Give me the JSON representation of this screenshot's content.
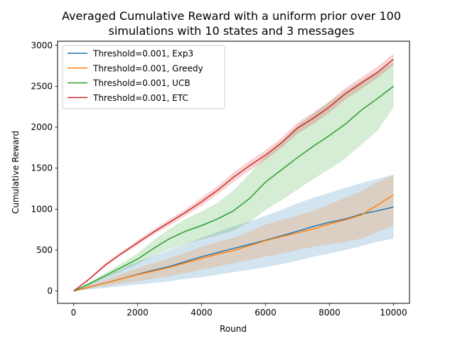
{
  "chart_data": {
    "type": "line",
    "title_lines": [
      "Averaged Cumulative Reward with a uniform prior over 100",
      "simulations with 10 states and 3 messages"
    ],
    "xlabel": "Round",
    "ylabel": "Cumulative Reward",
    "xlim": [
      -500,
      10500
    ],
    "ylim": [
      -150,
      3050
    ],
    "xticks": [
      0,
      2000,
      4000,
      6000,
      8000,
      10000
    ],
    "yticks": [
      0,
      500,
      1000,
      1500,
      2000,
      2500,
      3000
    ],
    "grid": false,
    "legend_position": "top-left",
    "x": [
      0,
      500,
      1000,
      1500,
      2000,
      2500,
      3000,
      3500,
      4000,
      4500,
      5000,
      5500,
      6000,
      6500,
      7000,
      7500,
      8000,
      8500,
      9000,
      9500,
      10000
    ],
    "series": [
      {
        "name": "Threshold=0.001, Exp3",
        "color": "#1f77b4",
        "values": [
          0,
          50,
          100,
          150,
          205,
          255,
          300,
          360,
          420,
          470,
          520,
          570,
          620,
          675,
          730,
          790,
          840,
          880,
          940,
          980,
          1025
        ],
        "lower": [
          0,
          20,
          40,
          60,
          80,
          100,
          120,
          150,
          170,
          200,
          230,
          260,
          290,
          330,
          370,
          420,
          460,
          500,
          550,
          600,
          640
        ],
        "upper": [
          0,
          90,
          180,
          270,
          360,
          430,
          500,
          570,
          650,
          720,
          790,
          850,
          920,
          990,
          1070,
          1140,
          1200,
          1260,
          1320,
          1370,
          1420
        ]
      },
      {
        "name": "Threshold=0.001, Greedy",
        "color": "#ff7f0e",
        "values": [
          0,
          50,
          100,
          150,
          200,
          245,
          290,
          345,
          400,
          450,
          495,
          555,
          615,
          665,
          710,
          760,
          820,
          870,
          930,
          1050,
          1175
        ],
        "lower": [
          0,
          30,
          60,
          90,
          120,
          150,
          180,
          220,
          260,
          300,
          340,
          380,
          420,
          460,
          500,
          540,
          570,
          600,
          640,
          720,
          800
        ],
        "upper": [
          0,
          70,
          140,
          210,
          280,
          340,
          400,
          470,
          540,
          600,
          650,
          730,
          810,
          870,
          920,
          980,
          1060,
          1140,
          1220,
          1330,
          1420
        ]
      },
      {
        "name": "Threshold=0.001, UCB",
        "color": "#2ca02c",
        "values": [
          0,
          90,
          190,
          290,
          390,
          520,
          640,
          730,
          800,
          880,
          980,
          1130,
          1330,
          1480,
          1630,
          1770,
          1900,
          2040,
          2210,
          2350,
          2500
        ],
        "lower": [
          0,
          70,
          160,
          240,
          330,
          430,
          510,
          570,
          630,
          680,
          740,
          840,
          990,
          1110,
          1240,
          1370,
          1490,
          1620,
          1790,
          1960,
          2240
        ],
        "upper": [
          0,
          110,
          220,
          340,
          460,
          620,
          760,
          880,
          970,
          1080,
          1230,
          1430,
          1650,
          1830,
          2020,
          2170,
          2310,
          2440,
          2570,
          2680,
          2790
        ]
      },
      {
        "name": "Threshold=0.001, ETC",
        "color": "#d62728",
        "values": [
          0,
          150,
          320,
          460,
          590,
          720,
          840,
          960,
          1090,
          1230,
          1390,
          1530,
          1660,
          1810,
          1990,
          2110,
          2250,
          2410,
          2540,
          2670,
          2830
        ],
        "lower": [
          0,
          140,
          300,
          440,
          560,
          690,
          800,
          920,
          1040,
          1180,
          1330,
          1470,
          1600,
          1750,
          1920,
          2040,
          2180,
          2340,
          2470,
          2600,
          2760
        ],
        "upper": [
          0,
          160,
          340,
          480,
          620,
          750,
          880,
          1000,
          1140,
          1280,
          1450,
          1590,
          1720,
          1870,
          2060,
          2180,
          2320,
          2480,
          2610,
          2740,
          2900
        ]
      }
    ]
  }
}
